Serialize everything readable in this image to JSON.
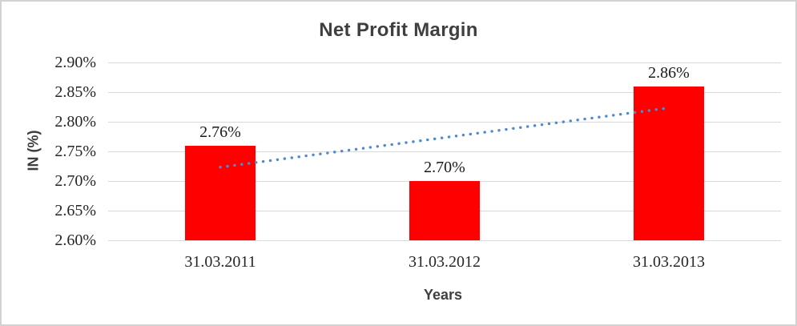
{
  "chart_data": {
    "type": "bar",
    "title": "Net Profit Margin",
    "categories": [
      "31.03.2011",
      "31.03.2012",
      "31.03.2013"
    ],
    "values": [
      2.76,
      2.7,
      2.86
    ],
    "data_labels": [
      "2.76%",
      "2.70%",
      "2.86%"
    ],
    "xlabel": "Years",
    "ylabel": "IN (%)",
    "ylim": [
      2.6,
      2.9
    ],
    "ytick_step": 0.05,
    "ytick_labels": [
      "2.60%",
      "2.65%",
      "2.70%",
      "2.75%",
      "2.80%",
      "2.85%",
      "2.90%"
    ],
    "grid": true,
    "legend": "none",
    "bar_color": "#ff0000",
    "gridline_color": "#d9d9d9",
    "border_color": "#d2d2d2",
    "text_colors": {
      "title": "#3f3f3f",
      "axis_title": "#3f3f3f",
      "tick": "#262626",
      "data_label": "#1a1a1a"
    },
    "trendline": {
      "type": "linear",
      "style": "dotted",
      "color": "#4f8bd1"
    }
  }
}
